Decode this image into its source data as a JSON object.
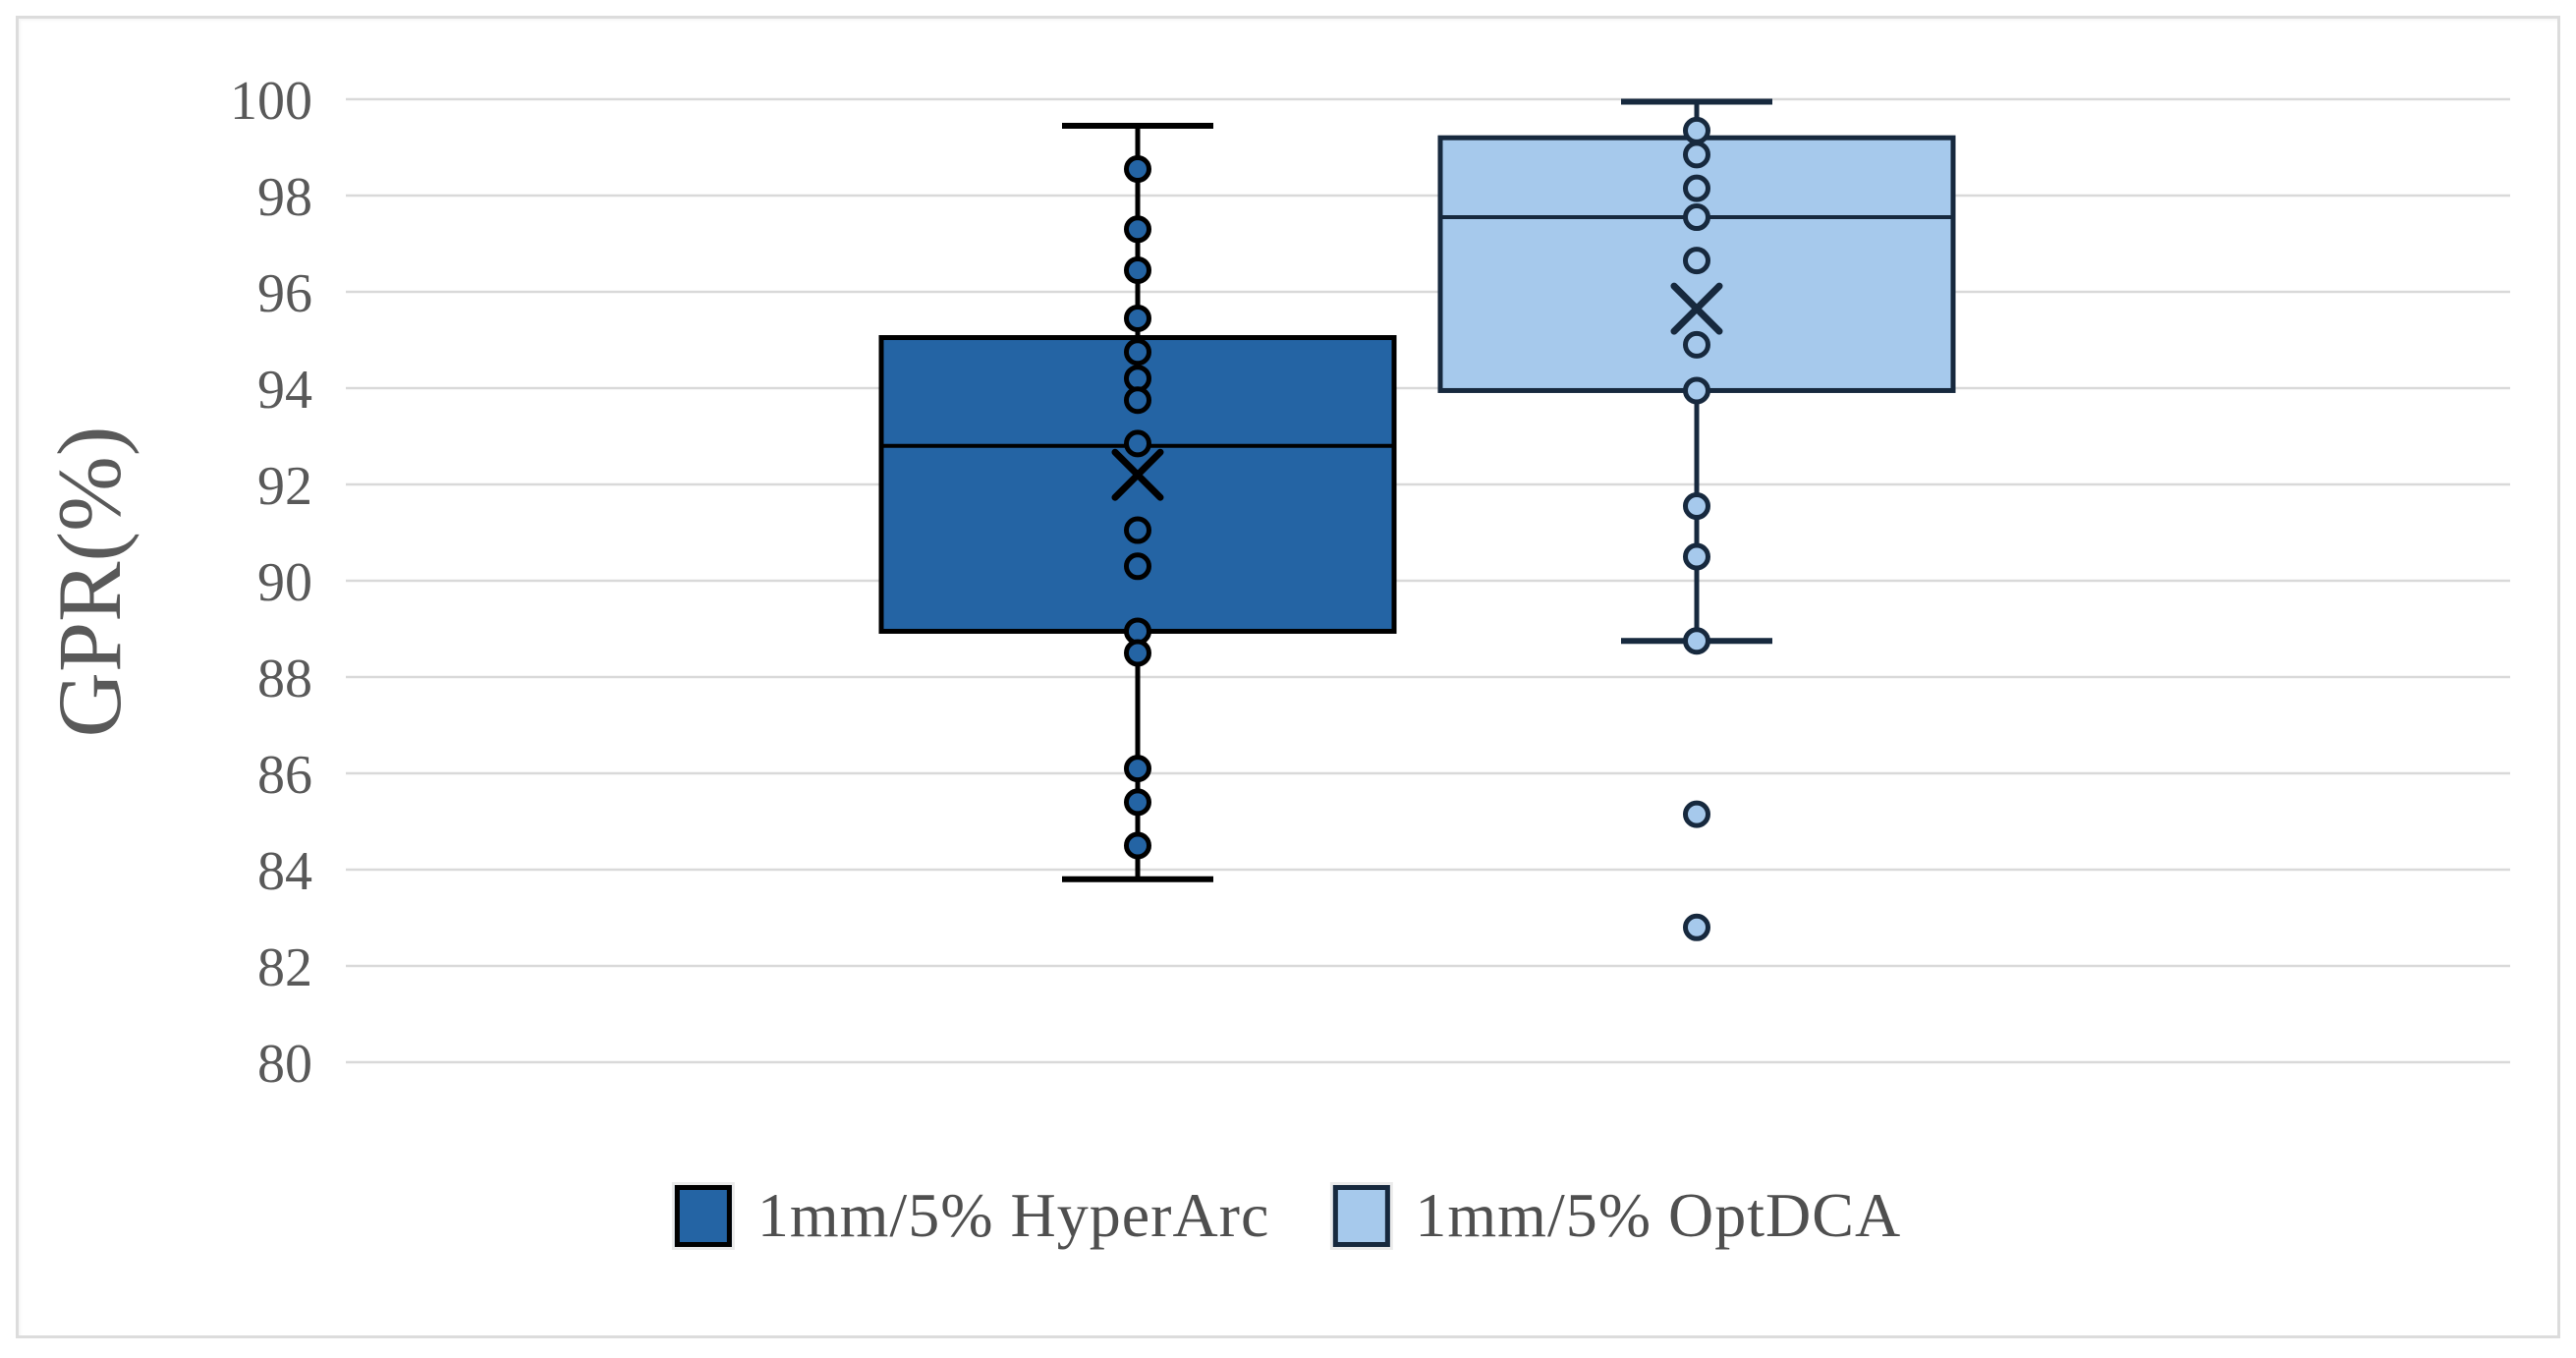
{
  "figure": {
    "background": "#FFFFFF",
    "border_color": "#DCDCDC"
  },
  "y_axis": {
    "title": "GPR(%)",
    "tick_labels": [
      "100",
      "98",
      "96",
      "94",
      "92",
      "90",
      "88",
      "86",
      "84",
      "82",
      "80"
    ],
    "min": 80,
    "max": 100,
    "step": 2,
    "text_color": "#595959"
  },
  "legend": {
    "items": [
      {
        "label": "1mm/5% HyperArc",
        "fill": "#2464A4",
        "border": "#000000"
      },
      {
        "label": "1mm/5% OptDCA",
        "fill": "#A6C9EC",
        "border": "#17293E"
      }
    ]
  },
  "chart_data": {
    "type": "boxplot",
    "title": "",
    "xlabel": "",
    "ylabel": "GPR(%)",
    "ylim": [
      80,
      100
    ],
    "ytick_step": 2,
    "grid": "horizontal",
    "gridline_color": "#D9D9D9",
    "legend_position": "bottom",
    "categories": [
      "1mm/5% HyperArc",
      "1mm/5% OptDCA"
    ],
    "series": [
      {
        "name": "1mm/5% HyperArc",
        "fill": "#2464A4",
        "stroke": "#000000",
        "box": {
          "whisker_low": 83.8,
          "q1": 88.95,
          "median": 92.8,
          "q3": 95.05,
          "whisker_high": 99.45,
          "mean": 92.2
        },
        "points": [
          98.55,
          97.3,
          96.45,
          95.45,
          94.75,
          94.2,
          93.75,
          92.85,
          91.05,
          90.3,
          88.95,
          88.5,
          86.1,
          85.4,
          84.5
        ],
        "outliers": []
      },
      {
        "name": "1mm/5% OptDCA",
        "fill": "#A6C9EC",
        "stroke": "#17293E",
        "box": {
          "whisker_low": 88.75,
          "q1": 93.95,
          "median": 97.55,
          "q3": 99.2,
          "whisker_high": 99.95,
          "mean": 95.65
        },
        "points": [
          99.35,
          98.85,
          98.15,
          97.55,
          96.65,
          94.9,
          93.95,
          91.55,
          90.5,
          88.75
        ],
        "outliers": [
          85.15,
          82.8
        ]
      }
    ]
  }
}
